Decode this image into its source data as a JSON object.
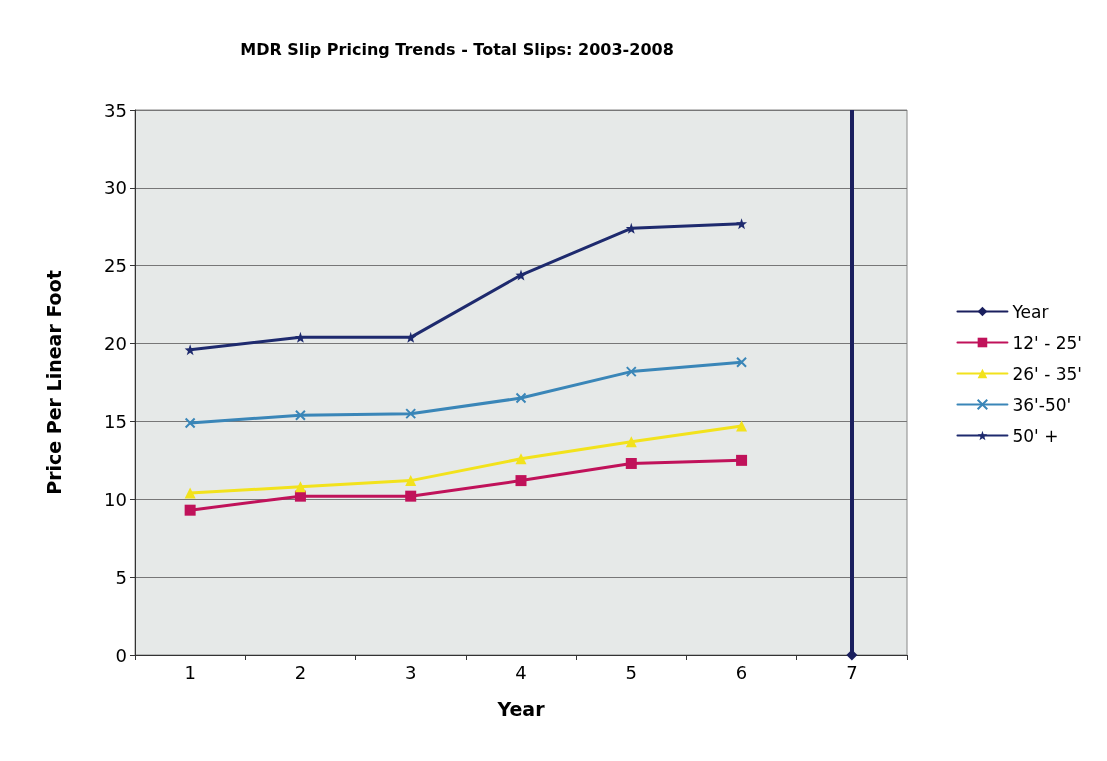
{
  "chart_data": {
    "type": "line",
    "title": "MDR Slip Pricing Trends - Total Slips: 2003-2008",
    "xlabel": "Year",
    "ylabel": "Price Per Linear Foot",
    "categories": [
      "1",
      "2",
      "3",
      "4",
      "5",
      "6",
      "7"
    ],
    "series": [
      {
        "name": "Year",
        "color": "#1a1f5e",
        "marker": "diamond",
        "values": [
          null,
          null,
          null,
          null,
          null,
          null,
          0
        ]
      },
      {
        "name": "12' - 25'",
        "color": "#c0125a",
        "marker": "square",
        "values": [
          9.3,
          10.2,
          10.2,
          11.2,
          12.3,
          12.5,
          null
        ]
      },
      {
        "name": "26' - 35'",
        "color": "#f2e21c",
        "marker": "triangle",
        "values": [
          10.4,
          10.8,
          11.2,
          12.6,
          13.7,
          14.7,
          null
        ]
      },
      {
        "name": "36'-50'",
        "color": "#3a86b8",
        "marker": "cross",
        "values": [
          14.9,
          15.4,
          15.5,
          16.5,
          18.2,
          18.8,
          null
        ]
      },
      {
        "name": "50' +",
        "color": "#1e2a6e",
        "marker": "star",
        "values": [
          19.6,
          20.4,
          20.4,
          24.4,
          27.4,
          27.7,
          null
        ]
      }
    ],
    "ref_lines": [
      {
        "axis": "x",
        "value": "7",
        "color": "#1a1f5e"
      }
    ],
    "ylim": [
      0,
      35
    ],
    "yticks": [
      0,
      5,
      10,
      15,
      20,
      25,
      30,
      35
    ],
    "grid": "y",
    "legend": "right",
    "line_style": "solid"
  }
}
